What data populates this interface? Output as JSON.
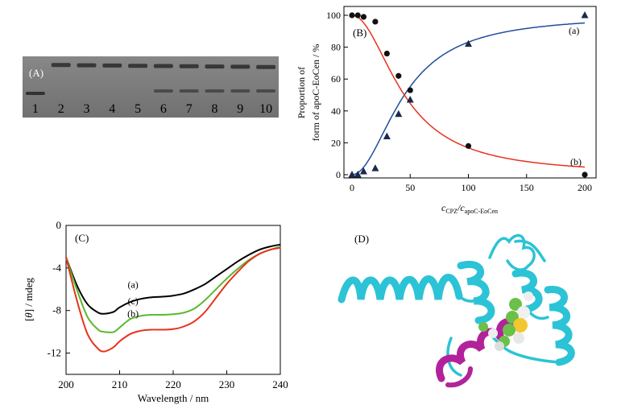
{
  "panel_labels": {
    "a": "(A)",
    "b": "(B)",
    "c": "(C)",
    "d": "(D)"
  },
  "gel": {
    "lanes": [
      "1",
      "2",
      "3",
      "4",
      "5",
      "6",
      "7",
      "8",
      "9",
      "10"
    ],
    "background": "#7a7a7a",
    "band_color": "#2a2a2a"
  },
  "chart_data": [
    {
      "panel": "B",
      "type": "line",
      "xlabel_main": "c",
      "xlabel_sub1": "CPZ",
      "xlabel_mid": "/c",
      "xlabel_sub2": "apoC-EoCen",
      "ylabel_line1": "Proportion of",
      "ylabel_line2": "form of apoC-EoCen / %",
      "xlim": [
        0,
        200
      ],
      "ylim": [
        0,
        100
      ],
      "xticks": [
        "0",
        "50",
        "100",
        "150",
        "200"
      ],
      "yticks": [
        "0",
        "20",
        "40",
        "60",
        "80",
        "100"
      ],
      "annotations": {
        "a": "(a)",
        "b": "(b)"
      },
      "series": [
        {
          "name": "(a)",
          "marker": "triangle",
          "color": "#1f4e9c",
          "x": [
            0,
            5,
            10,
            20,
            30,
            40,
            50,
            100,
            200
          ],
          "y": [
            0,
            0,
            2,
            4,
            24,
            38,
            47,
            82,
            100
          ],
          "fit": "sigmoid-rising"
        },
        {
          "name": "(b)",
          "marker": "circle",
          "color": "#e8321e",
          "x": [
            0,
            5,
            10,
            20,
            30,
            40,
            50,
            100,
            200
          ],
          "y": [
            100,
            100,
            99,
            96,
            76,
            62,
            53,
            18,
            0
          ],
          "fit": "sigmoid-falling"
        }
      ]
    },
    {
      "panel": "C",
      "type": "line",
      "xlabel": "Wavelength / nm",
      "ylabel_pre": "[",
      "ylabel_theta": "θ",
      "ylabel_post": "] / mdeg",
      "xlim": [
        200,
        240
      ],
      "ylim": [
        -14,
        0
      ],
      "xticks": [
        "200",
        "210",
        "220",
        "230",
        "240"
      ],
      "yticks": [
        "0",
        "-4",
        "-8",
        "-12"
      ],
      "series": [
        {
          "name": "(a)",
          "color": "#000000",
          "x": [
            200,
            202,
            204,
            206,
            207,
            208,
            209,
            210,
            212,
            214,
            216,
            218,
            220,
            222,
            224,
            226,
            228,
            230,
            232,
            234,
            236,
            238,
            240
          ],
          "y": [
            -3.0,
            -5.6,
            -7.4,
            -8.2,
            -8.3,
            -8.25,
            -8.1,
            -7.7,
            -7.2,
            -6.9,
            -6.75,
            -6.7,
            -6.6,
            -6.4,
            -6.0,
            -5.5,
            -4.8,
            -4.1,
            -3.4,
            -2.8,
            -2.3,
            -2.0,
            -1.8
          ]
        },
        {
          "name": "(c)",
          "color": "#5cb82e",
          "x": [
            200,
            202,
            204,
            206,
            207,
            208,
            209,
            210,
            212,
            214,
            216,
            218,
            220,
            222,
            224,
            226,
            228,
            230,
            232,
            234,
            236,
            238,
            240
          ],
          "y": [
            -3.0,
            -6.0,
            -8.6,
            -9.8,
            -10.0,
            -10.05,
            -10.0,
            -9.6,
            -8.8,
            -8.5,
            -8.4,
            -8.4,
            -8.35,
            -8.2,
            -7.8,
            -7.0,
            -6.0,
            -5.0,
            -4.1,
            -3.3,
            -2.7,
            -2.3,
            -2.0
          ]
        },
        {
          "name": "(b)",
          "color": "#e8321e",
          "x": [
            200,
            202,
            204,
            206,
            207,
            208,
            209,
            210,
            212,
            214,
            216,
            218,
            220,
            222,
            224,
            226,
            228,
            230,
            232,
            234,
            236,
            238,
            240
          ],
          "y": [
            -3.0,
            -7.0,
            -10.2,
            -11.6,
            -11.85,
            -11.7,
            -11.4,
            -10.9,
            -10.2,
            -9.9,
            -9.8,
            -9.8,
            -9.75,
            -9.5,
            -9.0,
            -8.1,
            -6.8,
            -5.5,
            -4.4,
            -3.4,
            -2.7,
            -2.3,
            -2.1
          ]
        }
      ]
    }
  ]
}
